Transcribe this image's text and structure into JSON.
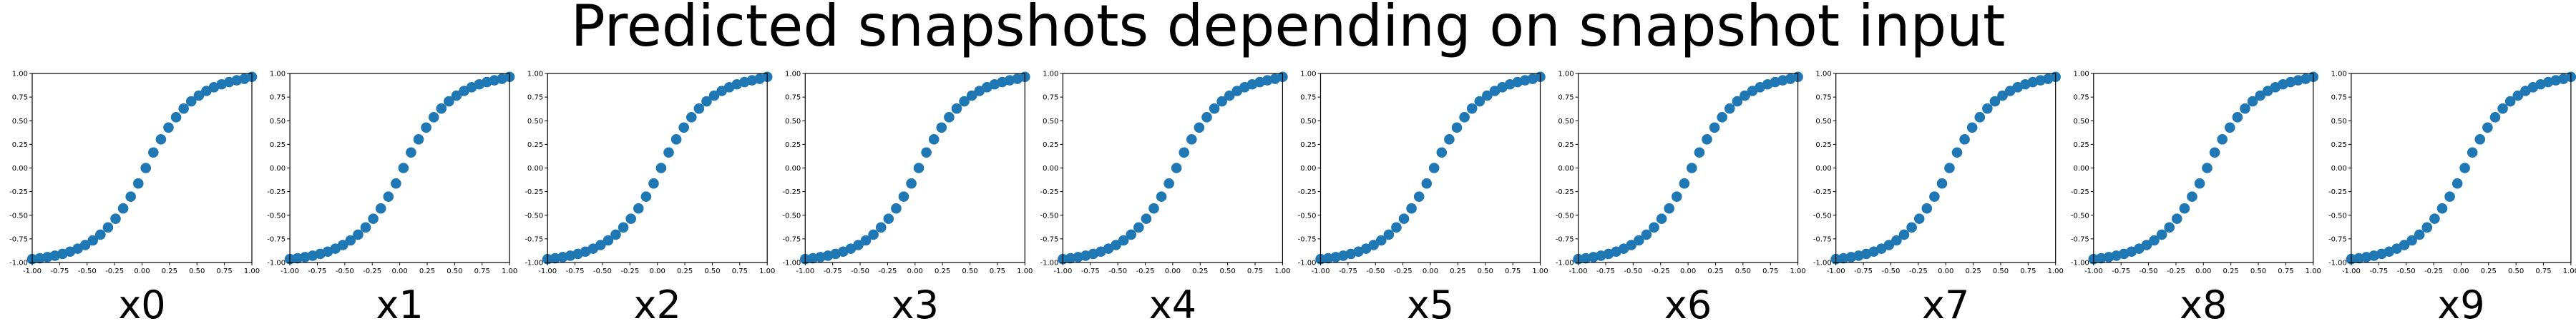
{
  "figure": {
    "title": "Predicted snapshots depending on snapshot input"
  },
  "chart_data": [
    {
      "type": "scatter",
      "xlabel": "x0",
      "xlim": [
        -1,
        1
      ],
      "ylim": [
        -1,
        1
      ],
      "xticks": [
        "-1.00",
        "-0.75",
        "-0.50",
        "-0.25",
        "0.00",
        "0.25",
        "0.50",
        "0.75",
        "1.00"
      ],
      "yticks": [
        "-1.00",
        "-0.75",
        "-0.50",
        "-0.25",
        "0.00",
        "0.25",
        "0.50",
        "0.75",
        "1.00"
      ],
      "color": "#1f77b4",
      "x": [
        -1.0,
        -0.931,
        -0.862,
        -0.793,
        -0.724,
        -0.655,
        -0.586,
        -0.517,
        -0.448,
        -0.379,
        -0.31,
        -0.241,
        -0.172,
        -0.103,
        -0.034,
        0.034,
        0.103,
        0.172,
        0.241,
        0.31,
        0.379,
        0.448,
        0.517,
        0.586,
        0.655,
        0.724,
        0.793,
        0.862,
        0.931,
        1.0
      ],
      "y": [
        -0.964,
        -0.955,
        -0.943,
        -0.928,
        -0.909,
        -0.885,
        -0.854,
        -0.815,
        -0.766,
        -0.705,
        -0.629,
        -0.537,
        -0.428,
        -0.303,
        -0.164,
        0.0,
        0.164,
        0.303,
        0.428,
        0.537,
        0.629,
        0.705,
        0.766,
        0.815,
        0.854,
        0.885,
        0.909,
        0.928,
        0.943,
        0.964
      ]
    },
    {
      "type": "scatter",
      "xlabel": "x1",
      "xlim": [
        -1,
        1
      ],
      "ylim": [
        -1,
        1
      ],
      "xticks": [
        "-1.00",
        "-0.75",
        "-0.50",
        "-0.25",
        "0.00",
        "0.25",
        "0.50",
        "0.75",
        "1.00"
      ],
      "yticks": [
        "-1.00",
        "-0.75",
        "-0.50",
        "-0.25",
        "0.00",
        "0.25",
        "0.50",
        "0.75",
        "1.00"
      ],
      "color": "#1f77b4",
      "x": [
        -1.0,
        -0.931,
        -0.862,
        -0.793,
        -0.724,
        -0.655,
        -0.586,
        -0.517,
        -0.448,
        -0.379,
        -0.31,
        -0.241,
        -0.172,
        -0.103,
        -0.034,
        0.034,
        0.103,
        0.172,
        0.241,
        0.31,
        0.379,
        0.448,
        0.517,
        0.586,
        0.655,
        0.724,
        0.793,
        0.862,
        0.931,
        1.0
      ],
      "y": [
        -0.964,
        -0.955,
        -0.943,
        -0.928,
        -0.909,
        -0.885,
        -0.854,
        -0.815,
        -0.766,
        -0.705,
        -0.629,
        -0.537,
        -0.428,
        -0.303,
        -0.164,
        0.0,
        0.164,
        0.303,
        0.428,
        0.537,
        0.629,
        0.705,
        0.766,
        0.815,
        0.854,
        0.885,
        0.909,
        0.928,
        0.943,
        0.964
      ]
    },
    {
      "type": "scatter",
      "xlabel": "x2",
      "xlim": [
        -1,
        1
      ],
      "ylim": [
        -1,
        1
      ],
      "xticks": [
        "-1.00",
        "-0.75",
        "-0.50",
        "-0.25",
        "0.00",
        "0.25",
        "0.50",
        "0.75",
        "1.00"
      ],
      "yticks": [
        "-1.00",
        "-0.75",
        "-0.50",
        "-0.25",
        "0.00",
        "0.25",
        "0.50",
        "0.75",
        "1.00"
      ],
      "color": "#1f77b4",
      "x": [
        -1.0,
        -0.931,
        -0.862,
        -0.793,
        -0.724,
        -0.655,
        -0.586,
        -0.517,
        -0.448,
        -0.379,
        -0.31,
        -0.241,
        -0.172,
        -0.103,
        -0.034,
        0.034,
        0.103,
        0.172,
        0.241,
        0.31,
        0.379,
        0.448,
        0.517,
        0.586,
        0.655,
        0.724,
        0.793,
        0.862,
        0.931,
        1.0
      ],
      "y": [
        -0.964,
        -0.955,
        -0.943,
        -0.928,
        -0.909,
        -0.885,
        -0.854,
        -0.815,
        -0.766,
        -0.705,
        -0.629,
        -0.537,
        -0.428,
        -0.303,
        -0.164,
        0.0,
        0.164,
        0.303,
        0.428,
        0.537,
        0.629,
        0.705,
        0.766,
        0.815,
        0.854,
        0.885,
        0.909,
        0.928,
        0.943,
        0.964
      ]
    },
    {
      "type": "scatter",
      "xlabel": "x3",
      "xlim": [
        -1,
        1
      ],
      "ylim": [
        -1,
        1
      ],
      "xticks": [
        "-1.00",
        "-0.75",
        "-0.50",
        "-0.25",
        "0.00",
        "0.25",
        "0.50",
        "0.75",
        "1.00"
      ],
      "yticks": [
        "-1.00",
        "-0.75",
        "-0.50",
        "-0.25",
        "0.00",
        "0.25",
        "0.50",
        "0.75",
        "1.00"
      ],
      "color": "#1f77b4",
      "x": [
        -1.0,
        -0.931,
        -0.862,
        -0.793,
        -0.724,
        -0.655,
        -0.586,
        -0.517,
        -0.448,
        -0.379,
        -0.31,
        -0.241,
        -0.172,
        -0.103,
        -0.034,
        0.034,
        0.103,
        0.172,
        0.241,
        0.31,
        0.379,
        0.448,
        0.517,
        0.586,
        0.655,
        0.724,
        0.793,
        0.862,
        0.931,
        1.0
      ],
      "y": [
        -0.964,
        -0.955,
        -0.943,
        -0.928,
        -0.909,
        -0.885,
        -0.854,
        -0.815,
        -0.766,
        -0.705,
        -0.629,
        -0.537,
        -0.428,
        -0.303,
        -0.164,
        0.0,
        0.164,
        0.303,
        0.428,
        0.537,
        0.629,
        0.705,
        0.766,
        0.815,
        0.854,
        0.885,
        0.909,
        0.928,
        0.943,
        0.964
      ]
    },
    {
      "type": "scatter",
      "xlabel": "x4",
      "xlim": [
        -1,
        1
      ],
      "ylim": [
        -1,
        1
      ],
      "xticks": [
        "-1.00",
        "-0.75",
        "-0.50",
        "-0.25",
        "0.00",
        "0.25",
        "0.50",
        "0.75",
        "1.00"
      ],
      "yticks": [
        "-1.00",
        "-0.75",
        "-0.50",
        "-0.25",
        "0.00",
        "0.25",
        "0.50",
        "0.75",
        "1.00"
      ],
      "color": "#1f77b4",
      "x": [
        -1.0,
        -0.931,
        -0.862,
        -0.793,
        -0.724,
        -0.655,
        -0.586,
        -0.517,
        -0.448,
        -0.379,
        -0.31,
        -0.241,
        -0.172,
        -0.103,
        -0.034,
        0.034,
        0.103,
        0.172,
        0.241,
        0.31,
        0.379,
        0.448,
        0.517,
        0.586,
        0.655,
        0.724,
        0.793,
        0.862,
        0.931,
        1.0
      ],
      "y": [
        -0.964,
        -0.955,
        -0.943,
        -0.928,
        -0.909,
        -0.885,
        -0.854,
        -0.815,
        -0.766,
        -0.705,
        -0.629,
        -0.537,
        -0.428,
        -0.303,
        -0.164,
        0.0,
        0.164,
        0.303,
        0.428,
        0.537,
        0.629,
        0.705,
        0.766,
        0.815,
        0.854,
        0.885,
        0.909,
        0.928,
        0.943,
        0.964
      ]
    },
    {
      "type": "scatter",
      "xlabel": "x5",
      "xlim": [
        -1,
        1
      ],
      "ylim": [
        -1,
        1
      ],
      "xticks": [
        "-1.00",
        "-0.75",
        "-0.50",
        "-0.25",
        "0.00",
        "0.25",
        "0.50",
        "0.75",
        "1.00"
      ],
      "yticks": [
        "-1.00",
        "-0.75",
        "-0.50",
        "-0.25",
        "0.00",
        "0.25",
        "0.50",
        "0.75",
        "1.00"
      ],
      "color": "#1f77b4",
      "x": [
        -1.0,
        -0.931,
        -0.862,
        -0.793,
        -0.724,
        -0.655,
        -0.586,
        -0.517,
        -0.448,
        -0.379,
        -0.31,
        -0.241,
        -0.172,
        -0.103,
        -0.034,
        0.034,
        0.103,
        0.172,
        0.241,
        0.31,
        0.379,
        0.448,
        0.517,
        0.586,
        0.655,
        0.724,
        0.793,
        0.862,
        0.931,
        1.0
      ],
      "y": [
        -0.964,
        -0.955,
        -0.943,
        -0.928,
        -0.909,
        -0.885,
        -0.854,
        -0.815,
        -0.766,
        -0.705,
        -0.629,
        -0.537,
        -0.428,
        -0.303,
        -0.164,
        0.0,
        0.164,
        0.303,
        0.428,
        0.537,
        0.629,
        0.705,
        0.766,
        0.815,
        0.854,
        0.885,
        0.909,
        0.928,
        0.943,
        0.964
      ]
    },
    {
      "type": "scatter",
      "xlabel": "x6",
      "xlim": [
        -1,
        1
      ],
      "ylim": [
        -1,
        1
      ],
      "xticks": [
        "-1.00",
        "-0.75",
        "-0.50",
        "-0.25",
        "0.00",
        "0.25",
        "0.50",
        "0.75",
        "1.00"
      ],
      "yticks": [
        "-1.00",
        "-0.75",
        "-0.50",
        "-0.25",
        "0.00",
        "0.25",
        "0.50",
        "0.75",
        "1.00"
      ],
      "color": "#1f77b4",
      "x": [
        -1.0,
        -0.931,
        -0.862,
        -0.793,
        -0.724,
        -0.655,
        -0.586,
        -0.517,
        -0.448,
        -0.379,
        -0.31,
        -0.241,
        -0.172,
        -0.103,
        -0.034,
        0.034,
        0.103,
        0.172,
        0.241,
        0.31,
        0.379,
        0.448,
        0.517,
        0.586,
        0.655,
        0.724,
        0.793,
        0.862,
        0.931,
        1.0
      ],
      "y": [
        -0.964,
        -0.955,
        -0.943,
        -0.928,
        -0.909,
        -0.885,
        -0.854,
        -0.815,
        -0.766,
        -0.705,
        -0.629,
        -0.537,
        -0.428,
        -0.303,
        -0.164,
        0.0,
        0.164,
        0.303,
        0.428,
        0.537,
        0.629,
        0.705,
        0.766,
        0.815,
        0.854,
        0.885,
        0.909,
        0.928,
        0.943,
        0.964
      ]
    },
    {
      "type": "scatter",
      "xlabel": "x7",
      "xlim": [
        -1,
        1
      ],
      "ylim": [
        -1,
        1
      ],
      "xticks": [
        "-1.00",
        "-0.75",
        "-0.50",
        "-0.25",
        "0.00",
        "0.25",
        "0.50",
        "0.75",
        "1.00"
      ],
      "yticks": [
        "-1.00",
        "-0.75",
        "-0.50",
        "-0.25",
        "0.00",
        "0.25",
        "0.50",
        "0.75",
        "1.00"
      ],
      "color": "#1f77b4",
      "x": [
        -1.0,
        -0.931,
        -0.862,
        -0.793,
        -0.724,
        -0.655,
        -0.586,
        -0.517,
        -0.448,
        -0.379,
        -0.31,
        -0.241,
        -0.172,
        -0.103,
        -0.034,
        0.034,
        0.103,
        0.172,
        0.241,
        0.31,
        0.379,
        0.448,
        0.517,
        0.586,
        0.655,
        0.724,
        0.793,
        0.862,
        0.931,
        1.0
      ],
      "y": [
        -0.964,
        -0.955,
        -0.943,
        -0.928,
        -0.909,
        -0.885,
        -0.854,
        -0.815,
        -0.766,
        -0.705,
        -0.629,
        -0.537,
        -0.428,
        -0.303,
        -0.164,
        0.0,
        0.164,
        0.303,
        0.428,
        0.537,
        0.629,
        0.705,
        0.766,
        0.815,
        0.854,
        0.885,
        0.909,
        0.928,
        0.943,
        0.964
      ]
    },
    {
      "type": "scatter",
      "xlabel": "x8",
      "xlim": [
        -1,
        1
      ],
      "ylim": [
        -1,
        1
      ],
      "xticks": [
        "-1.00",
        "-0.75",
        "-0.50",
        "-0.25",
        "0.00",
        "0.25",
        "0.50",
        "0.75",
        "1.00"
      ],
      "yticks": [
        "-1.00",
        "-0.75",
        "-0.50",
        "-0.25",
        "0.00",
        "0.25",
        "0.50",
        "0.75",
        "1.00"
      ],
      "color": "#1f77b4",
      "x": [
        -1.0,
        -0.931,
        -0.862,
        -0.793,
        -0.724,
        -0.655,
        -0.586,
        -0.517,
        -0.448,
        -0.379,
        -0.31,
        -0.241,
        -0.172,
        -0.103,
        -0.034,
        0.034,
        0.103,
        0.172,
        0.241,
        0.31,
        0.379,
        0.448,
        0.517,
        0.586,
        0.655,
        0.724,
        0.793,
        0.862,
        0.931,
        1.0
      ],
      "y": [
        -0.964,
        -0.955,
        -0.943,
        -0.928,
        -0.909,
        -0.885,
        -0.854,
        -0.815,
        -0.766,
        -0.705,
        -0.629,
        -0.537,
        -0.428,
        -0.303,
        -0.164,
        0.0,
        0.164,
        0.303,
        0.428,
        0.537,
        0.629,
        0.705,
        0.766,
        0.815,
        0.854,
        0.885,
        0.909,
        0.928,
        0.943,
        0.964
      ]
    },
    {
      "type": "scatter",
      "xlabel": "x9",
      "xlim": [
        -1,
        1
      ],
      "ylim": [
        -1,
        1
      ],
      "xticks": [
        "-1.00",
        "-0.75",
        "-0.50",
        "-0.25",
        "0.00",
        "0.25",
        "0.50",
        "0.75",
        "1.00"
      ],
      "yticks": [
        "-1.00",
        "-0.75",
        "-0.50",
        "-0.25",
        "0.00",
        "0.25",
        "0.50",
        "0.75",
        "1.00"
      ],
      "color": "#1f77b4",
      "x": [
        -1.0,
        -0.931,
        -0.862,
        -0.793,
        -0.724,
        -0.655,
        -0.586,
        -0.517,
        -0.448,
        -0.379,
        -0.31,
        -0.241,
        -0.172,
        -0.103,
        -0.034,
        0.034,
        0.103,
        0.172,
        0.241,
        0.31,
        0.379,
        0.448,
        0.517,
        0.586,
        0.655,
        0.724,
        0.793,
        0.862,
        0.931,
        1.0
      ],
      "y": [
        -0.964,
        -0.955,
        -0.943,
        -0.928,
        -0.909,
        -0.885,
        -0.854,
        -0.815,
        -0.766,
        -0.705,
        -0.629,
        -0.537,
        -0.428,
        -0.303,
        -0.164,
        0.0,
        0.164,
        0.303,
        0.428,
        0.537,
        0.629,
        0.705,
        0.766,
        0.815,
        0.854,
        0.885,
        0.909,
        0.928,
        0.943,
        0.964
      ]
    }
  ]
}
